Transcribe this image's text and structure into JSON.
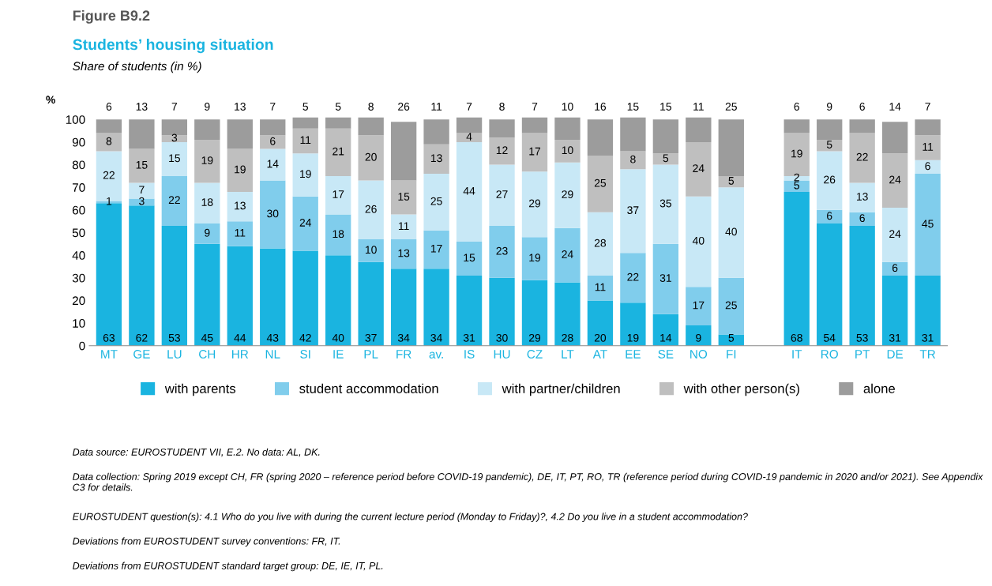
{
  "chart_data": {
    "type": "bar",
    "title": "Students’ housing situation",
    "subtitle": "Share of students (in %)",
    "ylabel": "%",
    "categories": [
      "MT",
      "GE",
      "LU",
      "CH",
      "HR",
      "NL",
      "SI",
      "IE",
      "PL",
      "FR",
      "av.",
      "IS",
      "HU",
      "CZ",
      "LT",
      "AT",
      "EE",
      "SE",
      "NO",
      "FI",
      null,
      "IT",
      "RO",
      "PT",
      "DE",
      "TR"
    ],
    "stacked": true,
    "data_labels": true,
    "grid": false,
    "legend": "bottom",
    "ylim": [
      0,
      101
    ],
    "yticks": [
      0,
      10,
      20,
      30,
      40,
      50,
      60,
      70,
      80,
      90,
      100
    ],
    "series": [
      {
        "name": "with parents",
        "color": "#1ab4e0",
        "values": [
          63,
          62,
          53,
          45,
          44,
          43,
          42,
          40,
          37,
          34,
          34,
          31,
          30,
          29,
          28,
          20,
          19,
          14,
          9,
          5,
          null,
          68,
          54,
          53,
          31,
          31
        ]
      },
      {
        "name": "student accommodation",
        "color": "#80cdec",
        "values": [
          1,
          3,
          22,
          9,
          11,
          30,
          24,
          18,
          10,
          13,
          17,
          15,
          23,
          19,
          24,
          11,
          22,
          31,
          17,
          25,
          null,
          5,
          6,
          6,
          6,
          45
        ]
      },
      {
        "name": "with partner/children",
        "color": "#c8e8f6",
        "values": [
          22,
          7,
          15,
          18,
          13,
          14,
          19,
          17,
          26,
          11,
          25,
          44,
          27,
          29,
          29,
          28,
          37,
          35,
          40,
          40,
          null,
          2,
          26,
          13,
          24,
          6
        ]
      },
      {
        "name": "with other person(s)",
        "color": "#bfbfbf",
        "values": [
          8,
          15,
          3,
          19,
          19,
          6,
          11,
          21,
          20,
          15,
          13,
          4,
          12,
          17,
          10,
          25,
          8,
          5,
          24,
          5,
          null,
          19,
          5,
          22,
          24,
          11
        ]
      },
      {
        "name": "alone",
        "color": "#9c9c9c",
        "values": [
          6,
          13,
          7,
          9,
          13,
          7,
          5,
          5,
          8,
          26,
          11,
          7,
          8,
          7,
          10,
          16,
          15,
          15,
          11,
          25,
          null,
          6,
          9,
          6,
          14,
          7
        ]
      }
    ],
    "annotations": [
      "Figure B9.2",
      "Data source: EUROSTUDENT VII, E.2. No data: AL, DK.",
      "Data collection: Spring 2019 except CH, FR (spring 2020 – reference period before COVID-19 pandemic), DE, IT, PT, RO, TR (reference period during COVID-19 pandemic in 2020 and/or 2021). See Appendix C3 for details.",
      "EUROSTUDENT question(s): 4.1 Who do you live with during the current lecture period (Monday to Friday)?, 4.2 Do you live in a student accommodation?",
      "Deviations from EUROSTUDENT survey conventions: FR, IT.",
      "Deviations from EUROSTUDENT standard target group: DE, IE, IT, PL."
    ]
  }
}
